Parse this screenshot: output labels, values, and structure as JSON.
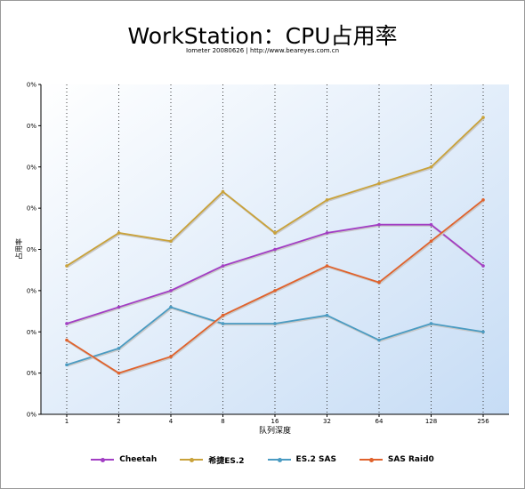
{
  "chart_data": {
    "type": "line",
    "title": "WorkStation：CPU占用率",
    "subtitle": "Iometer 20080626 | http://www.beareyes.com.cn",
    "xlabel": "队列深度",
    "ylabel": "占用率",
    "categories": [
      "1",
      "2",
      "4",
      "8",
      "16",
      "32",
      "64",
      "128",
      "256"
    ],
    "ytick_labels": [
      "0%",
      "0%",
      "0%",
      "0%",
      "0%",
      "0%",
      "0%",
      "0%",
      "0%"
    ],
    "ylim": [
      0,
      8
    ],
    "grid": "vertical-dotted",
    "legend_position": "bottom",
    "series": [
      {
        "name": "Cheetah",
        "color": "#a23ec4",
        "values": [
          2.2,
          2.6,
          3.0,
          3.6,
          4.0,
          4.4,
          4.6,
          4.6,
          3.6
        ]
      },
      {
        "name": "希捷ES.2",
        "color": "#c9a23a",
        "values": [
          3.6,
          4.4,
          4.2,
          5.4,
          4.4,
          5.2,
          5.6,
          6.0,
          7.2
        ]
      },
      {
        "name": "ES.2 SAS",
        "color": "#4a9bc2",
        "values": [
          1.2,
          1.6,
          2.6,
          2.2,
          2.2,
          2.4,
          1.8,
          2.2,
          2.0
        ]
      },
      {
        "name": "SAS Raid0",
        "color": "#e0622c",
        "values": [
          1.8,
          1.0,
          1.4,
          2.4,
          3.0,
          3.6,
          3.2,
          4.2,
          5.2
        ]
      }
    ]
  }
}
